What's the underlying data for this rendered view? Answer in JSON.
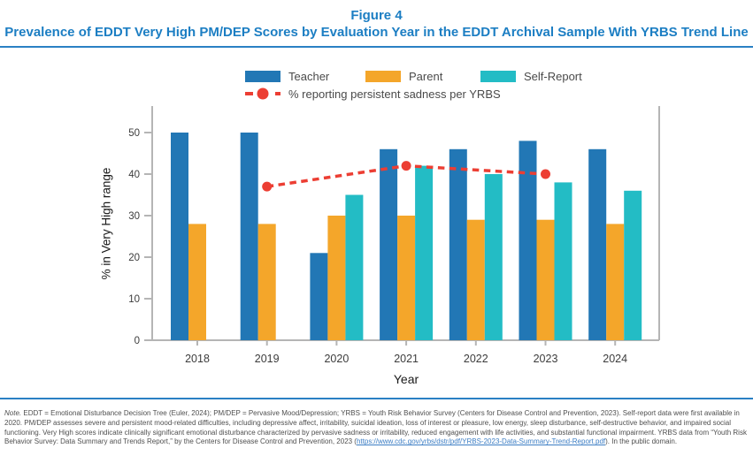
{
  "header": {
    "figure_label": "Figure 4",
    "title": "Prevalence of EDDT Very High PM/DEP Scores by Evaluation Year in the EDDT Archival Sample With YRBS Trend Line"
  },
  "chart_data": {
    "type": "bar",
    "categories": [
      "2018",
      "2019",
      "2020",
      "2021",
      "2022",
      "2023",
      "2024"
    ],
    "series": [
      {
        "name": "Teacher",
        "color": "#2277B5",
        "values": [
          50,
          50,
          21,
          46,
          46,
          48,
          46
        ]
      },
      {
        "name": "Parent",
        "color": "#F4A62A",
        "values": [
          28,
          28,
          30,
          30,
          29,
          29,
          28
        ]
      },
      {
        "name": "Self-Report",
        "color": "#23BCC5",
        "values": [
          null,
          null,
          35,
          42,
          40,
          38,
          36
        ]
      }
    ],
    "trend_line": {
      "name": "% reporting persistent sadness per YRBS",
      "color": "#EC3E33",
      "style": "dashed-with-dots",
      "points": [
        {
          "x": "2019",
          "y": 37
        },
        {
          "x": "2021",
          "y": 42
        },
        {
          "x": "2023",
          "y": 40
        }
      ]
    },
    "title": "Prevalence of EDDT Very High PM/DEP Scores by Evaluation Year in the EDDT Archival Sample With YRBS Trend Line",
    "xlabel": "Year",
    "ylabel": "% in Very High range",
    "ylim": [
      0,
      55
    ],
    "yticks": [
      0,
      10,
      20,
      30,
      40,
      50
    ],
    "grid": false,
    "legend_position": "top"
  },
  "palette": {
    "title_blue": "#1C7EC3",
    "divider_blue": "#2A80C4",
    "axis_gray": "#B5B5B5",
    "tick_label_gray": "#3C3C3C",
    "note_gray": "#4F4F4F",
    "link_blue": "#3B7DC4"
  },
  "note": {
    "label": "Note.",
    "text_before_link": "EDDT = Emotional Disturbance Decision Tree (Euler, 2024); PM/DEP = Pervasive Mood/Depression; YRBS = Youth Risk Behavior Survey (Centers for Disease Control and Prevention, 2023). Self-report data were first available in 2020. PM/DEP assesses severe and persistent mood-related difficulties, including depressive affect, irritability, suicidal ideation, loss of interest or pleasure, low energy, sleep disturbance, self-destructive behavior, and impaired social functioning. Very High scores indicate clinically significant emotional disturbance characterized by pervasive sadness or irritability, reduced engagement with life activities, and substantial functional impairment. YRBS data from “Youth Risk Behavior Survey: Data Summary and Trends Report,” by the Centers for Disease Control and Prevention, 2023 (",
    "link_text": "https://www.cdc.gov/yrbs/dstr/pdf/YRBS-2023-Data-Summary-Trend-Report.pdf",
    "text_after_link": "). In the public domain."
  }
}
